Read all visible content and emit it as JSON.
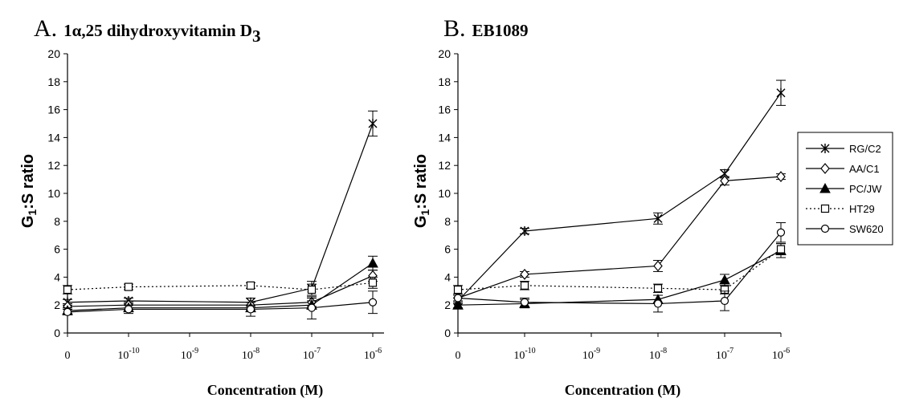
{
  "chart_data": [
    {
      "type": "line",
      "title_letter": "A.",
      "title_sub": "1α,25 dihydroxyvitamin D",
      "title_subscript": "3",
      "xlabel": "Concentration (M)",
      "ylabel_main": "G",
      "ylabel_sub": "1",
      "ylabel_rest": ":S ratio",
      "x_tick_bases": [
        "0",
        "10",
        "10",
        "10",
        "10",
        "10"
      ],
      "x_tick_exps": [
        "",
        "-10",
        "-9",
        "-8",
        "-7",
        "-6"
      ],
      "ylim": [
        0,
        20
      ],
      "yticks": [
        "0",
        "2",
        "4",
        "6",
        "8",
        "10",
        "12",
        "14",
        "16",
        "18",
        "20"
      ],
      "grid": false,
      "series": [
        {
          "name": "RG/C2",
          "marker": "star",
          "dash": "solid",
          "x_index": [
            0,
            1,
            3,
            4,
            5
          ],
          "values": [
            2.2,
            2.3,
            2.2,
            3.2,
            15.0
          ],
          "errors": [
            0.2,
            0.2,
            0.3,
            0.5,
            0.9
          ]
        },
        {
          "name": "AA/C1",
          "marker": "diamond",
          "dash": "solid",
          "x_index": [
            0,
            1,
            3,
            4,
            5
          ],
          "values": [
            1.9,
            2.0,
            2.0,
            2.2,
            4.1
          ],
          "errors": [
            0.2,
            0.2,
            0.2,
            0.3,
            0.4
          ]
        },
        {
          "name": "PC/JW",
          "marker": "triangle",
          "dash": "solid",
          "x_index": [
            0,
            1,
            3,
            4,
            5
          ],
          "values": [
            1.6,
            1.8,
            1.8,
            2.0,
            5.0
          ],
          "errors": [
            0.2,
            0.2,
            0.2,
            0.3,
            0.5
          ]
        },
        {
          "name": "HT29",
          "marker": "square",
          "dash": "dotted",
          "x_index": [
            0,
            1,
            3,
            4,
            5
          ],
          "values": [
            3.1,
            3.3,
            3.4,
            3.1,
            3.6
          ],
          "errors": [
            0.3,
            0.2,
            0.2,
            0.4,
            0.4
          ]
        },
        {
          "name": "SW620",
          "marker": "circle",
          "dash": "solid",
          "x_index": [
            0,
            1,
            3,
            4,
            5
          ],
          "values": [
            1.5,
            1.7,
            1.7,
            1.8,
            2.2
          ],
          "errors": [
            0.2,
            0.3,
            0.5,
            0.8,
            0.8
          ]
        }
      ]
    },
    {
      "type": "line",
      "title_letter": "B.",
      "title_sub": "EB1089",
      "title_subscript": "",
      "xlabel": "Concentration (M)",
      "ylabel_main": "G",
      "ylabel_sub": "1",
      "ylabel_rest": ":S ratio",
      "x_tick_bases": [
        "0",
        "10",
        "10",
        "10",
        "10",
        "10"
      ],
      "x_tick_exps": [
        "",
        "-10",
        "-9",
        "-8",
        "-7",
        "-6"
      ],
      "ylim": [
        0,
        20
      ],
      "yticks": [
        "0",
        "2",
        "4",
        "6",
        "8",
        "10",
        "12",
        "14",
        "16",
        "18",
        "20"
      ],
      "grid": false,
      "series": [
        {
          "name": "RG/C2",
          "marker": "star",
          "dash": "solid",
          "x_index": [
            0,
            1,
            3,
            4,
            5
          ],
          "values": [
            2.3,
            7.3,
            8.2,
            11.4,
            17.2
          ],
          "errors": [
            0.2,
            0.2,
            0.4,
            0.3,
            0.9
          ]
        },
        {
          "name": "AA/C1",
          "marker": "diamond",
          "dash": "solid",
          "x_index": [
            0,
            1,
            3,
            4,
            5
          ],
          "values": [
            2.5,
            4.2,
            4.8,
            10.9,
            11.2
          ],
          "errors": [
            0.2,
            0.2,
            0.4,
            0.3,
            0.2
          ]
        },
        {
          "name": "PC/JW",
          "marker": "triangle",
          "dash": "solid",
          "x_index": [
            0,
            1,
            3,
            4,
            5
          ],
          "values": [
            2.0,
            2.1,
            2.4,
            3.8,
            5.9
          ],
          "errors": [
            0.2,
            0.3,
            0.3,
            0.4,
            0.5
          ]
        },
        {
          "name": "HT29",
          "marker": "square",
          "dash": "dotted",
          "x_index": [
            0,
            1,
            3,
            4,
            5
          ],
          "values": [
            3.1,
            3.4,
            3.2,
            3.1,
            6.0
          ],
          "errors": [
            0.3,
            0.3,
            0.3,
            0.3,
            0.4
          ]
        },
        {
          "name": "SW620",
          "marker": "circle",
          "dash": "solid",
          "x_index": [
            0,
            1,
            3,
            4,
            5
          ],
          "values": [
            2.5,
            2.2,
            2.1,
            2.3,
            7.2
          ],
          "errors": [
            0.2,
            0.3,
            0.6,
            0.7,
            0.7
          ]
        }
      ]
    }
  ],
  "legend": {
    "placement": "right",
    "entries": [
      {
        "name": "RG/C2",
        "marker": "star",
        "dash": "solid"
      },
      {
        "name": "AA/C1",
        "marker": "diamond",
        "dash": "solid"
      },
      {
        "name": "PC/JW",
        "marker": "triangle",
        "dash": "solid"
      },
      {
        "name": "HT29",
        "marker": "square",
        "dash": "dotted"
      },
      {
        "name": "SW620",
        "marker": "circle",
        "dash": "solid"
      }
    ]
  }
}
